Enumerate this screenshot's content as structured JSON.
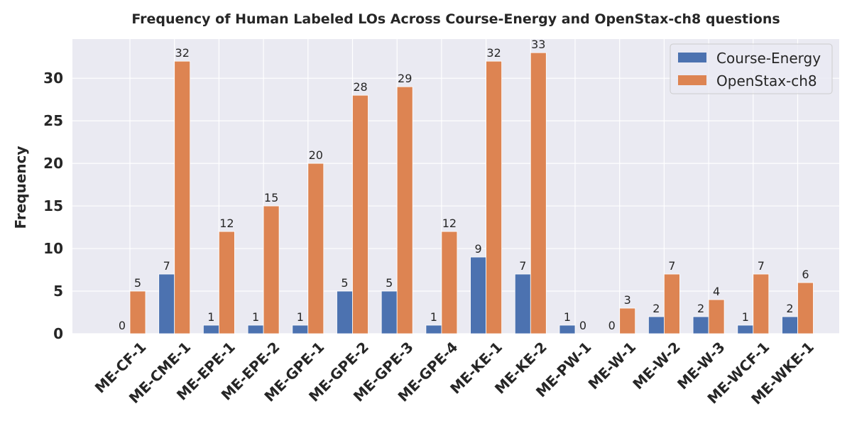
{
  "chart_data": {
    "type": "bar",
    "title": "Frequency of Human Labeled LOs Across Course-Energy and OpenStax-ch8 questions",
    "xlabel": "",
    "ylabel": "Frequency",
    "ylim": [
      0,
      34.6
    ],
    "yticks": [
      0,
      5,
      10,
      15,
      20,
      25,
      30
    ],
    "grid": true,
    "legend_position": "top-right",
    "categories": [
      "ME-CF-1",
      "ME-CME-1",
      "ME-EPE-1",
      "ME-EPE-2",
      "ME-GPE-1",
      "ME-GPE-2",
      "ME-GPE-3",
      "ME-GPE-4",
      "ME-KE-1",
      "ME-KE-2",
      "ME-PW-1",
      "ME-W-1",
      "ME-W-2",
      "ME-W-3",
      "ME-WCF-1",
      "ME-WKE-1"
    ],
    "series": [
      {
        "name": "Course-Energy",
        "color": "#4c72b0",
        "values": [
          0,
          7,
          1,
          1,
          1,
          5,
          5,
          1,
          9,
          7,
          1,
          0,
          2,
          2,
          1,
          2
        ]
      },
      {
        "name": "OpenStax-ch8",
        "color": "#dd8452",
        "values": [
          5,
          32,
          12,
          15,
          20,
          28,
          29,
          12,
          32,
          33,
          0,
          3,
          7,
          4,
          7,
          6
        ]
      }
    ],
    "colors": {
      "background": "#eaeaf2",
      "grid": "#ffffff",
      "text": "#262626"
    }
  }
}
